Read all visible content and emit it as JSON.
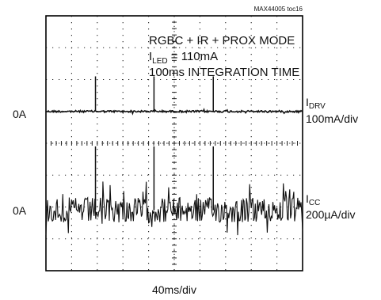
{
  "figure_id": "MAX44005 toc16",
  "chart_data": {
    "type": "line",
    "title": "",
    "annotations": [
      "RGBC + IR + PROX MODE",
      "I",
      "LED",
      " = 110mA",
      "100ms INTEGRATION TIME"
    ],
    "xlabel": "40ms/div",
    "x_divisions": 10,
    "y_divisions": 8,
    "grid": true,
    "channels": [
      {
        "name": "I",
        "name_sub": "DRV",
        "scale": "100mA/div",
        "zero_label": "0A",
        "baseline_div": 5.0,
        "noise_div": 0.03,
        "pulse_times_div": [
          1.93,
          4.21,
          6.52
        ],
        "pulse_height_div": 1.1
      },
      {
        "name": "I",
        "name_sub": "CC",
        "scale": "200µA/div",
        "zero_label": "0A",
        "baseline_div": 1.9,
        "noise_div": 0.4,
        "pulse_times_div": [
          1.93,
          4.21,
          6.52
        ],
        "pulse_height_div": 2.0
      }
    ]
  }
}
